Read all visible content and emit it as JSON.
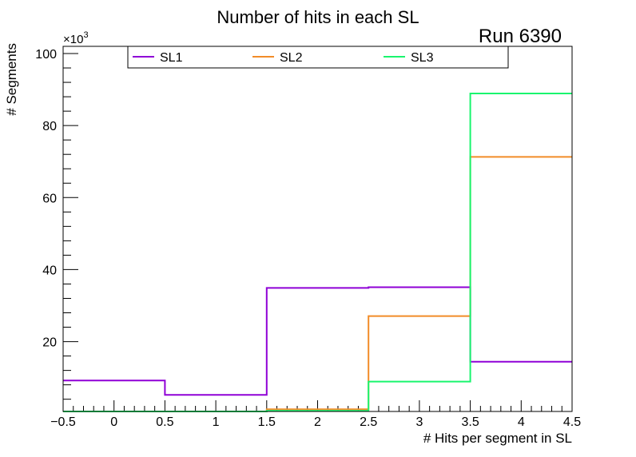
{
  "chart_data": {
    "type": "step-histogram",
    "title": "Number of hits in each SL",
    "annotation": "Run 6390",
    "xlabel": "# Hits per segment in SL",
    "ylabel": "# Segments",
    "y_exponent_label": "×10",
    "y_exponent_power": "3",
    "xlim": [
      -0.5,
      4.5
    ],
    "ylim": [
      0.6,
      102
    ],
    "x_tick_labels": [
      "−0.5",
      "0",
      "0.5",
      "1",
      "1.5",
      "2",
      "2.5",
      "3",
      "3.5",
      "4",
      "4.5"
    ],
    "x_ticks": [
      -0.5,
      0,
      0.5,
      1,
      1.5,
      2,
      2.5,
      3,
      3.5,
      4,
      4.5
    ],
    "y_tick_labels": [
      "20",
      "40",
      "60",
      "80",
      "100"
    ],
    "y_ticks": [
      20,
      40,
      60,
      80,
      100
    ],
    "bin_edges": [
      -0.5,
      0.5,
      1.5,
      2.5,
      3.5,
      4.5
    ],
    "series": [
      {
        "name": "SL1",
        "color": "#8f00d6",
        "values": [
          9.2,
          5.2,
          34.9,
          35.1,
          14.4
        ]
      },
      {
        "name": "SL2",
        "color": "#f28c28",
        "values": [
          0.6,
          0.6,
          1.2,
          27.1,
          71.3
        ]
      },
      {
        "name": "SL3",
        "color": "#19f56e",
        "values": [
          0.6,
          0.6,
          0.8,
          8.9,
          88.9
        ]
      }
    ]
  }
}
